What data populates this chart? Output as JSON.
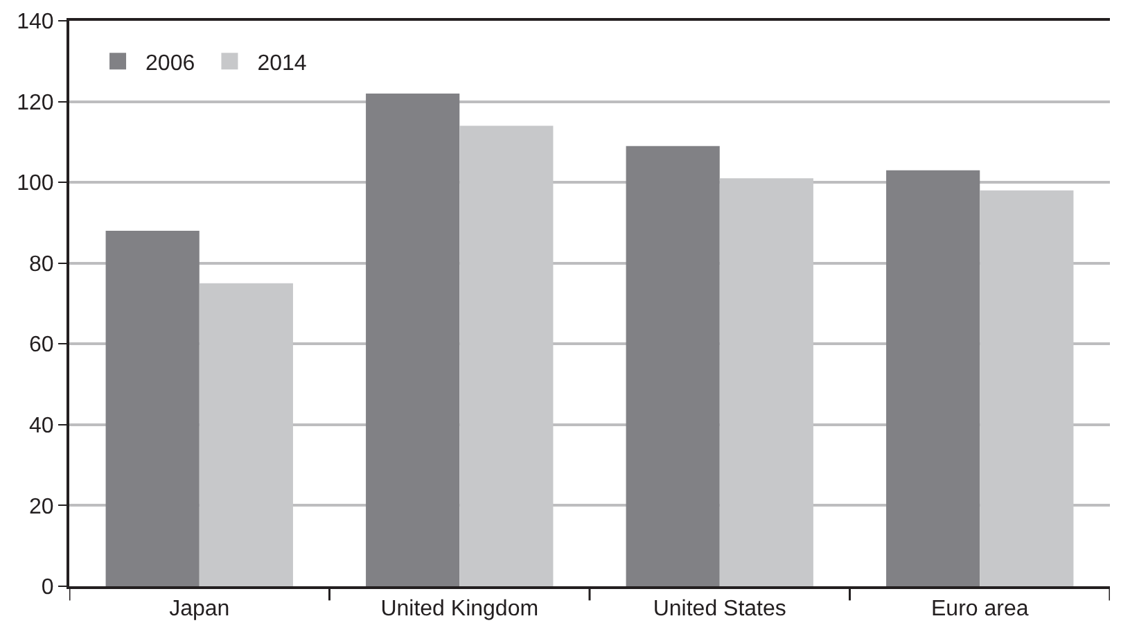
{
  "chart_data": {
    "type": "bar",
    "categories": [
      "Japan",
      "United Kingdom",
      "United States",
      "Euro area"
    ],
    "series": [
      {
        "name": "2006",
        "color": "#818185",
        "values": [
          88,
          122,
          109,
          103
        ]
      },
      {
        "name": "2014",
        "color": "#c7c8ca",
        "values": [
          75,
          114,
          101,
          98
        ]
      }
    ],
    "ylim": [
      0,
      140
    ],
    "yticks": [
      0,
      20,
      40,
      60,
      80,
      100,
      120,
      140
    ],
    "grid": "y",
    "legend": "top left"
  }
}
